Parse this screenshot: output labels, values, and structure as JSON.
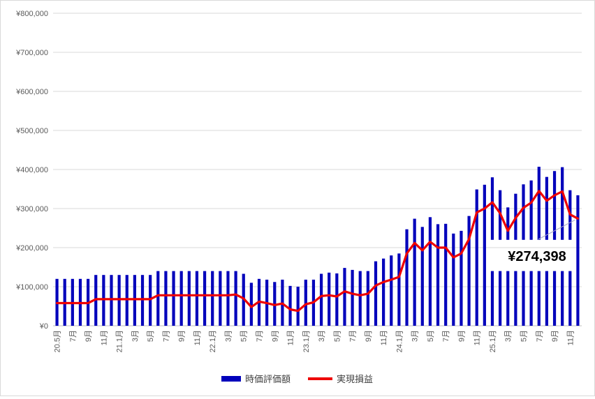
{
  "chart_data": {
    "type": "bar",
    "title": "",
    "xlabel": "",
    "ylabel": "",
    "ylim": [
      0,
      800000
    ],
    "y_ticks": [
      0,
      100000,
      200000,
      300000,
      400000,
      500000,
      600000,
      700000,
      800000
    ],
    "y_tick_labels": [
      "¥0",
      "¥100,000",
      "¥200,000",
      "¥300,000",
      "¥400,000",
      "¥500,000",
      "¥600,000",
      "¥700,000",
      "¥800,000"
    ],
    "grid": true,
    "legend_position": "bottom",
    "categories": [
      "2020-05",
      "2020-06",
      "2020-07",
      "2020-08",
      "2020-09",
      "2020-10",
      "2020-11",
      "2020-12",
      "2021-01",
      "2021-02",
      "2021-03",
      "2021-04",
      "2021-05",
      "2021-06",
      "2021-07",
      "2021-08",
      "2021-09",
      "2021-10",
      "2021-11",
      "2021-12",
      "2022-01",
      "2022-02",
      "2022-03",
      "2022-04",
      "2022-05",
      "2022-06",
      "2022-07",
      "2022-08",
      "2022-09",
      "2022-10",
      "2022-11",
      "2022-12",
      "2023-01",
      "2023-02",
      "2023-03",
      "2023-04",
      "2023-05",
      "2023-06",
      "2023-07",
      "2023-08",
      "2023-09",
      "2023-10",
      "2023-11",
      "2023-12",
      "2024-01",
      "2024-02",
      "2024-03",
      "2024-04",
      "2024-05",
      "2024-06",
      "2024-07",
      "2024-08",
      "2024-09",
      "2024-10",
      "2024-11",
      "2024-12",
      "2025-01",
      "2025-02",
      "2025-03",
      "2025-04",
      "2025-05",
      "2025-06",
      "2025-07",
      "2025-08",
      "2025-09",
      "2025-10",
      "2025-11",
      "2025-12"
    ],
    "x_tick_labels": [
      "20.5月",
      "",
      "7月",
      "",
      "9月",
      "",
      "11月",
      "",
      "21.1月",
      "",
      "3月",
      "",
      "5月",
      "",
      "7月",
      "",
      "9月",
      "",
      "11月",
      "",
      "22.1月",
      "",
      "3月",
      "",
      "5月",
      "",
      "7月",
      "",
      "9月",
      "",
      "11月",
      "",
      "23.1月",
      "",
      "3月",
      "",
      "5月",
      "",
      "7月",
      "",
      "9月",
      "",
      "11月",
      "",
      "24.1月",
      "",
      "3月",
      "",
      "5月",
      "",
      "7月",
      "",
      "9月",
      "",
      "11月",
      "",
      "25.1月",
      "",
      "3月",
      "",
      "5月",
      "",
      "7月",
      "",
      "9月",
      "",
      "11月",
      ""
    ],
    "series": [
      {
        "name": "時価評価額",
        "kind": "bar",
        "color": "#0000bb",
        "values": [
          120000,
          120000,
          120000,
          120000,
          120000,
          130000,
          130000,
          130000,
          130000,
          130000,
          130000,
          130000,
          130000,
          140000,
          140000,
          140000,
          140000,
          140000,
          140000,
          140000,
          140000,
          140000,
          140000,
          140000,
          133000,
          110000,
          120000,
          118000,
          112000,
          118000,
          102000,
          100000,
          118000,
          118000,
          133000,
          136000,
          134000,
          148000,
          143000,
          140000,
          140000,
          165000,
          172000,
          180000,
          185000,
          247000,
          274000,
          253000,
          278000,
          260000,
          261000,
          236000,
          243000,
          281000,
          349000,
          361000,
          380000,
          347000,
          303000,
          338000,
          362000,
          372000,
          407000,
          381000,
          396000,
          406000,
          347000,
          334000
        ],
        "gap_ranges": [
          null,
          null,
          null,
          null,
          null,
          null,
          null,
          null,
          null,
          null,
          null,
          null,
          null,
          null,
          null,
          null,
          null,
          null,
          null,
          null,
          null,
          null,
          null,
          null,
          null,
          null,
          null,
          null,
          null,
          null,
          null,
          null,
          null,
          null,
          null,
          null,
          null,
          null,
          null,
          null,
          null,
          null,
          null,
          null,
          null,
          null,
          null,
          null,
          null,
          null,
          null,
          null,
          null,
          null,
          null,
          null,
          [
            140000,
            220000
          ],
          [
            140000,
            220000
          ],
          [
            140000,
            220000
          ],
          [
            140000,
            220000
          ],
          [
            140000,
            220000
          ],
          [
            140000,
            220000
          ],
          [
            140000,
            220000
          ],
          [
            140000,
            220000
          ],
          [
            140000,
            220000
          ],
          [
            140000,
            220000
          ],
          [
            140000,
            220000
          ],
          null
        ]
      },
      {
        "name": "実現損益",
        "kind": "line",
        "color": "#ee0000",
        "values": [
          58000,
          58000,
          58000,
          58000,
          58000,
          68000,
          68000,
          68000,
          68000,
          68000,
          68000,
          68000,
          68000,
          78000,
          78000,
          78000,
          78000,
          78000,
          78000,
          78000,
          78000,
          78000,
          78000,
          80000,
          70000,
          48000,
          62000,
          58000,
          53000,
          57000,
          42000,
          38000,
          55000,
          60000,
          76000,
          78000,
          75000,
          88000,
          82000,
          78000,
          82000,
          103000,
          112000,
          118000,
          125000,
          185000,
          212000,
          193000,
          215000,
          200000,
          200000,
          175000,
          185000,
          222000,
          290000,
          300000,
          316000,
          288000,
          243000,
          276000,
          302000,
          315000,
          345000,
          320000,
          334000,
          344000,
          285000,
          274398
        ]
      }
    ],
    "annotations": [
      {
        "text": "¥274,398",
        "category": "2025-12",
        "value": 274398
      }
    ]
  }
}
